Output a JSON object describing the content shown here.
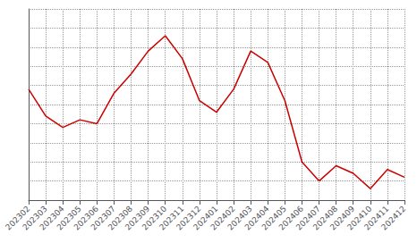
{
  "chart_data": {
    "type": "line",
    "categories": [
      "202302",
      "202303",
      "202304",
      "202305",
      "202306",
      "202307",
      "202308",
      "202309",
      "202310",
      "202311",
      "202312",
      "202401",
      "202402",
      "202403",
      "202404",
      "202405",
      "202406",
      "202407",
      "202408",
      "202409",
      "202410",
      "202411",
      "202412"
    ],
    "values": [
      58,
      44,
      38,
      42,
      40,
      56,
      66,
      78,
      86,
      74,
      52,
      46,
      58,
      78,
      72,
      52,
      20,
      10,
      18,
      14,
      6,
      16,
      12
    ],
    "color": "#cc0000",
    "ylim": [
      0,
      100
    ],
    "yticks": [
      0,
      10,
      20,
      30,
      40,
      50,
      60,
      70,
      80,
      90,
      100
    ],
    "grid": true,
    "tick_labels": "x"
  }
}
